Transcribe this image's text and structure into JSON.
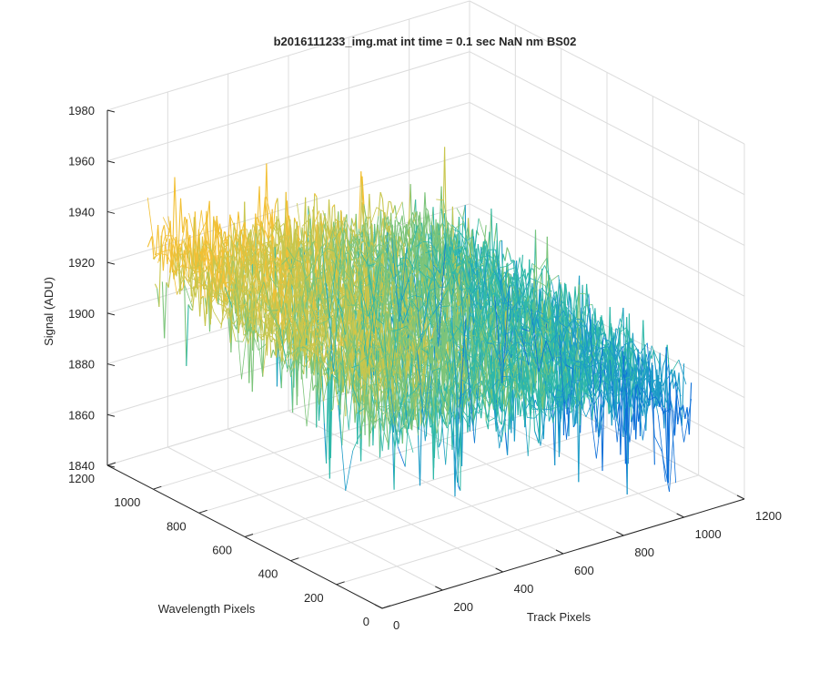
{
  "chart_data": {
    "type": "surface3d",
    "title": "b2016111233_img.mat int time = 0.1 sec  NaN nm BS02",
    "xlabel": "Track Pixels",
    "ylabel": "Wavelength Pixels",
    "zlabel": "Signal (ADU)",
    "xlim": [
      0,
      1200
    ],
    "ylim": [
      0,
      1200
    ],
    "zlim": [
      1840,
      1980
    ],
    "x_ticks": [
      "0",
      "200",
      "400",
      "600",
      "800",
      "1000",
      "1200"
    ],
    "y_ticks": [
      "0",
      "200",
      "400",
      "600",
      "800",
      "1000",
      "1200"
    ],
    "z_ticks": [
      "1840",
      "1860",
      "1880",
      "1900",
      "1920",
      "1940",
      "1960",
      "1980"
    ],
    "grid": true,
    "data_extent": {
      "track_pixels": [
        0,
        1024
      ],
      "wavelength_pixels": [
        0,
        1024
      ]
    },
    "mean_signal_by_track_pixel": [
      {
        "x": 0,
        "z": 1925
      },
      {
        "x": 256,
        "z": 1920
      },
      {
        "x": 512,
        "z": 1913
      },
      {
        "x": 768,
        "z": 1905
      },
      {
        "x": 1024,
        "z": 1895
      }
    ],
    "mean_signal_by_wavelength_pixel": [
      {
        "y": 0,
        "z": 1902
      },
      {
        "y": 512,
        "z": 1910
      },
      {
        "y": 1024,
        "z": 1918
      }
    ],
    "noise_amplitude": 12,
    "colormap": [
      "#0d6fd8",
      "#1c9bc7",
      "#2fb8a8",
      "#7cc47a",
      "#c8c64d",
      "#f2c035"
    ]
  }
}
